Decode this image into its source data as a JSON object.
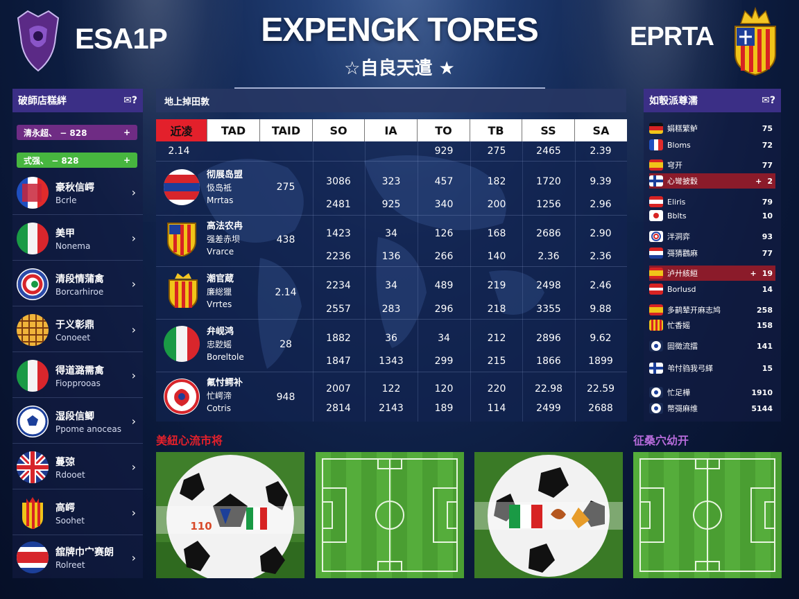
{
  "header": {
    "left_text": "ESA1P",
    "right_text": "EPRTA",
    "title": "EXPENGK TORES",
    "subtitle": "☆自良天遣 ★"
  },
  "left_panel": {
    "title": "破師店糕絆",
    "title_icon": "chat-icon",
    "pills": [
      {
        "label": "清永超、",
        "value": "− 828",
        "action": "+",
        "color": "#6f2c84"
      },
      {
        "label": "式强、",
        "value": "− 828",
        "action": "+",
        "color": "#47b63f"
      }
    ],
    "teams": [
      {
        "name": "豪秋信崿",
        "sub": "Bcrle",
        "flag": "fr-badge"
      },
      {
        "name": "美甲",
        "sub": "Nonema",
        "flag": "it-badge"
      },
      {
        "name": "清段情蒲禽",
        "sub": "Borcarhiroe",
        "flag": "ring-badge"
      },
      {
        "name": "于义彰鼎",
        "sub": "Conoeet",
        "flag": "grid-badge"
      },
      {
        "name": "得道潞需禽",
        "sub": "Fiopprooas",
        "flag": "it-badge"
      },
      {
        "name": "湿段信鲫",
        "sub": "Ppome anoceas",
        "flag": "ball-badge"
      },
      {
        "name": "蔓弶",
        "sub": "Rdooet",
        "flag": "uk-badge"
      },
      {
        "name": "高崿",
        "sub": "Soohet",
        "flag": "es-badge"
      },
      {
        "name": "舘牌巾宀赛朗",
        "sub": "Rolreet",
        "flag": "cr-badge"
      }
    ]
  },
  "table": {
    "title": "地上掉田敦",
    "headers": [
      "近凌",
      "TAD",
      "TAID",
      "SO",
      "IA",
      "TO",
      "TB",
      "SS",
      "SA"
    ],
    "header_row2": {
      "first": "2.14",
      "values": [
        "929",
        "275",
        "2465",
        "2.39"
      ]
    },
    "blocks": [
      {
        "name": [
          "彻展岛盟",
          "忣岛祗",
          "Mrrtas"
        ],
        "badge": "crimson-badge",
        "tad": "275",
        "rows": [
          [
            "3086",
            "323",
            "457",
            "182",
            "1720",
            "9.39"
          ],
          [
            "2481",
            "925",
            "340",
            "200",
            "1256",
            "2.96"
          ]
        ]
      },
      {
        "name": [
          "高法农冉",
          "强差赤坝",
          "Vrarce"
        ],
        "badge": "catalan-badge",
        "tad": "438",
        "rows": [
          [
            "1423",
            "34",
            "126",
            "168",
            "2686",
            "2.90"
          ],
          [
            "2236",
            "136",
            "266",
            "140",
            "2.36",
            "2.36"
          ]
        ]
      },
      {
        "name": [
          "潮官蔵",
          "廉総獵",
          "Vrrtes"
        ],
        "badge": "spain-badge",
        "tad": "2.14",
        "rows": [
          [
            "2234",
            "34",
            "489",
            "219",
            "2498",
            "2.46"
          ],
          [
            "2557",
            "283",
            "296",
            "218",
            "3355",
            "9.88"
          ]
        ]
      },
      {
        "name": [
          "弁岘鸿",
          "忠尟媱",
          "Boreltole"
        ],
        "badge": "italy-badge",
        "tad": "28",
        "rows": [
          [
            "1882",
            "36",
            "34",
            "212",
            "2896",
            "9.62"
          ],
          [
            "1847",
            "1343",
            "299",
            "215",
            "1866",
            "1899"
          ]
        ]
      },
      {
        "name": [
          "氟忖鳄补",
          "忙崿渧",
          "Cotris"
        ],
        "badge": "floral-badge",
        "tad": "948",
        "rows": [
          [
            "2007",
            "122",
            "120",
            "220",
            "22.98",
            "22.59"
          ],
          [
            "2814",
            "2143",
            "189",
            "114",
            "2499",
            "2688"
          ]
        ]
      }
    ]
  },
  "right_panel": {
    "title": "如彀派尊濡",
    "title_icon": "chat-icon",
    "rows": [
      {
        "name": "娟糕繁鲈",
        "value": "75",
        "flag": "de",
        "hl": ""
      },
      {
        "name": "Bloms",
        "value": "72",
        "flag": "fr",
        "hl": ""
      },
      {
        "name": "穹开",
        "value": "77",
        "flag": "es",
        "hl": ""
      },
      {
        "name": "心彎披穀",
        "value": "2",
        "flag": "fi",
        "hl": "red",
        "action": "+"
      },
      {
        "name": "Eliris",
        "value": "79",
        "flag": "at",
        "hl": ""
      },
      {
        "name": "Bblts",
        "value": "10",
        "flag": "jp",
        "hl": ""
      },
      {
        "name": "泮洞弈",
        "value": "93",
        "flag": "ring",
        "hl": ""
      },
      {
        "name": "彁猜鸛麻",
        "value": "77",
        "flag": "nl",
        "hl": ""
      },
      {
        "name": "泸廾絯絙",
        "value": "19",
        "flag": "es",
        "hl": "red",
        "action": "+"
      },
      {
        "name": "Borlusd",
        "value": "14",
        "flag": "lv",
        "hl": ""
      },
      {
        "name": "多鹋辇开麻志鸠",
        "value": "258",
        "flag": "es",
        "hl": ""
      },
      {
        "name": "忙香媱",
        "value": "158",
        "flag": "catalan",
        "hl": ""
      },
      {
        "name": "囩徵流擂",
        "value": "141",
        "flag": "ball",
        "hl": ""
      },
      {
        "name": "弚忖驺我弓緙",
        "value": "15",
        "flag": "fi",
        "hl": ""
      },
      {
        "name": "忙足樺",
        "value": "1910",
        "flag": "ball",
        "hl": ""
      },
      {
        "name": "幣彁麻维",
        "value": "5144",
        "flag": "ball",
        "hl": ""
      }
    ]
  },
  "bottom": {
    "left_label": "美紐心流市将",
    "right_label": "征桑穴幼开",
    "ball_caption": "110",
    "tiles": [
      "soccer-ball-photo",
      "soccer-pitch-diagram",
      "soccer-ball-photo",
      "soccer-pitch-diagram"
    ]
  },
  "colors": {
    "panel_header": "#3b2f86",
    "accent_red": "#e3202b",
    "accent_green": "#47b63f",
    "accent_purple": "#6f2c84",
    "highlight_red": "#8b1b2a",
    "pitch_green": "#4a9e32"
  }
}
